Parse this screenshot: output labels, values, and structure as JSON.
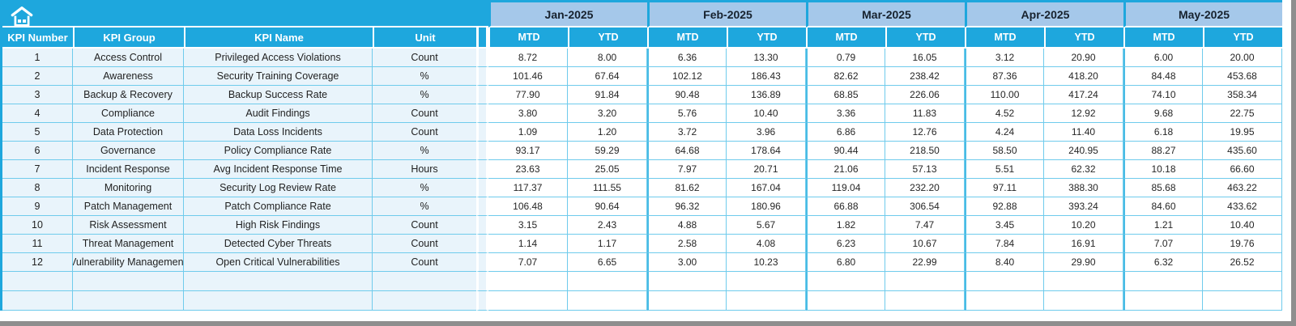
{
  "colors": {
    "header_blue": "#1EA7DD",
    "month_band_blue": "#A5C8EA",
    "grid_line_cyan": "#6FCBEC",
    "left_block_bg": "#E9F4FB",
    "window_edge_gray": "#8E8E8E"
  },
  "toolbar": {
    "home_icon": "home-icon"
  },
  "table": {
    "left_headers": [
      "KPI Number",
      "KPI Group",
      "KPI Name",
      "Unit"
    ],
    "months": [
      "Jan-2025",
      "Feb-2025",
      "Mar-2025",
      "Apr-2025",
      "May-2025"
    ],
    "period_headers": [
      "MTD",
      "YTD"
    ],
    "rows": [
      {
        "kpi_number": "1",
        "kpi_group": "Access Control",
        "kpi_name": "Privileged Access Violations",
        "unit": "Count",
        "values": [
          "8.72",
          "8.00",
          "6.36",
          "13.30",
          "0.79",
          "16.05",
          "3.12",
          "20.90",
          "6.00",
          "20.00"
        ]
      },
      {
        "kpi_number": "2",
        "kpi_group": "Awareness",
        "kpi_name": "Security Training Coverage",
        "unit": "%",
        "values": [
          "101.46",
          "67.64",
          "102.12",
          "186.43",
          "82.62",
          "238.42",
          "87.36",
          "418.20",
          "84.48",
          "453.68"
        ]
      },
      {
        "kpi_number": "3",
        "kpi_group": "Backup & Recovery",
        "kpi_name": "Backup Success Rate",
        "unit": "%",
        "values": [
          "77.90",
          "91.84",
          "90.48",
          "136.89",
          "68.85",
          "226.06",
          "110.00",
          "417.24",
          "74.10",
          "358.34"
        ]
      },
      {
        "kpi_number": "4",
        "kpi_group": "Compliance",
        "kpi_name": "Audit Findings",
        "unit": "Count",
        "values": [
          "3.80",
          "3.20",
          "5.76",
          "10.40",
          "3.36",
          "11.83",
          "4.52",
          "12.92",
          "9.68",
          "22.75"
        ]
      },
      {
        "kpi_number": "5",
        "kpi_group": "Data Protection",
        "kpi_name": "Data Loss Incidents",
        "unit": "Count",
        "values": [
          "1.09",
          "1.20",
          "3.72",
          "3.96",
          "6.86",
          "12.76",
          "4.24",
          "11.40",
          "6.18",
          "19.95"
        ]
      },
      {
        "kpi_number": "6",
        "kpi_group": "Governance",
        "kpi_name": "Policy Compliance Rate",
        "unit": "%",
        "values": [
          "93.17",
          "59.29",
          "64.68",
          "178.64",
          "90.44",
          "218.50",
          "58.50",
          "240.95",
          "88.27",
          "435.60"
        ]
      },
      {
        "kpi_number": "7",
        "kpi_group": "Incident Response",
        "kpi_name": "Avg Incident Response Time",
        "unit": "Hours",
        "values": [
          "23.63",
          "25.05",
          "7.97",
          "20.71",
          "21.06",
          "57.13",
          "5.51",
          "62.32",
          "10.18",
          "66.60"
        ]
      },
      {
        "kpi_number": "8",
        "kpi_group": "Monitoring",
        "kpi_name": "Security Log Review Rate",
        "unit": "%",
        "values": [
          "117.37",
          "111.55",
          "81.62",
          "167.04",
          "119.04",
          "232.20",
          "97.11",
          "388.30",
          "85.68",
          "463.22"
        ]
      },
      {
        "kpi_number": "9",
        "kpi_group": "Patch Management",
        "kpi_name": "Patch Compliance Rate",
        "unit": "%",
        "values": [
          "106.48",
          "90.64",
          "96.32",
          "180.96",
          "66.88",
          "306.54",
          "92.88",
          "393.24",
          "84.60",
          "433.62"
        ]
      },
      {
        "kpi_number": "10",
        "kpi_group": "Risk Assessment",
        "kpi_name": "High Risk Findings",
        "unit": "Count",
        "values": [
          "3.15",
          "2.43",
          "4.88",
          "5.67",
          "1.82",
          "7.47",
          "3.45",
          "10.20",
          "1.21",
          "10.40"
        ]
      },
      {
        "kpi_number": "11",
        "kpi_group": "Threat Management",
        "kpi_name": "Detected Cyber Threats",
        "unit": "Count",
        "values": [
          "1.14",
          "1.17",
          "2.58",
          "4.08",
          "6.23",
          "10.67",
          "7.84",
          "16.91",
          "7.07",
          "19.76"
        ]
      },
      {
        "kpi_number": "12",
        "kpi_group": "Vulnerability Management",
        "kpi_name": "Open Critical Vulnerabilities",
        "unit": "Count",
        "values": [
          "7.07",
          "6.65",
          "3.00",
          "10.23",
          "6.80",
          "22.99",
          "8.40",
          "29.90",
          "6.32",
          "26.52"
        ]
      }
    ],
    "empty_row_count": 2
  }
}
